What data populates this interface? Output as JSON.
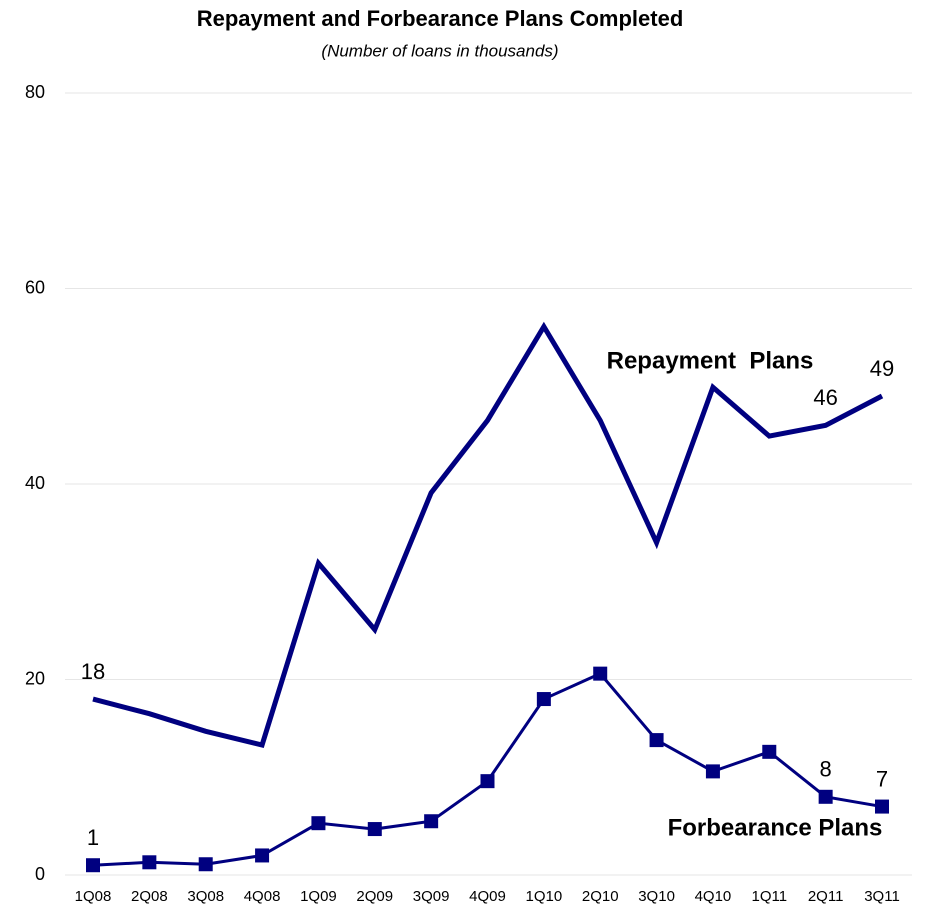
{
  "chart_data": {
    "type": "line",
    "title": "Repayment and Forbearance Plans Completed",
    "subtitle": "(Number of loans in thousands)",
    "categories": [
      "1Q08",
      "2Q08",
      "3Q08",
      "4Q08",
      "1Q09",
      "2Q09",
      "3Q09",
      "4Q09",
      "1Q10",
      "2Q10",
      "3Q10",
      "4Q10",
      "1Q11",
      "2Q11",
      "3Q11"
    ],
    "series": [
      {
        "name": "Repayment  Plans",
        "color": "#000080",
        "values": [
          18,
          16.5,
          14.7,
          13.3,
          31.9,
          25.1,
          39.1,
          46.5,
          56.1,
          46.5,
          34,
          49.9,
          44.9,
          46,
          49
        ],
        "value_labels": [
          "18",
          null,
          null,
          null,
          null,
          null,
          null,
          null,
          null,
          null,
          null,
          null,
          null,
          "46",
          "49"
        ]
      },
      {
        "name": "Forbearance Plans",
        "color": "#000080",
        "marker": "square",
        "values": [
          1,
          1.3,
          1.1,
          2,
          5.3,
          4.7,
          5.5,
          9.6,
          18,
          20.6,
          13.8,
          10.6,
          12.6,
          8,
          7
        ],
        "value_labels": [
          "1",
          null,
          null,
          null,
          null,
          null,
          null,
          null,
          null,
          null,
          null,
          null,
          null,
          "8",
          "7"
        ]
      }
    ],
    "ylim": [
      0,
      80
    ],
    "yticks": [
      0,
      20,
      40,
      60,
      80
    ],
    "grid": true
  }
}
